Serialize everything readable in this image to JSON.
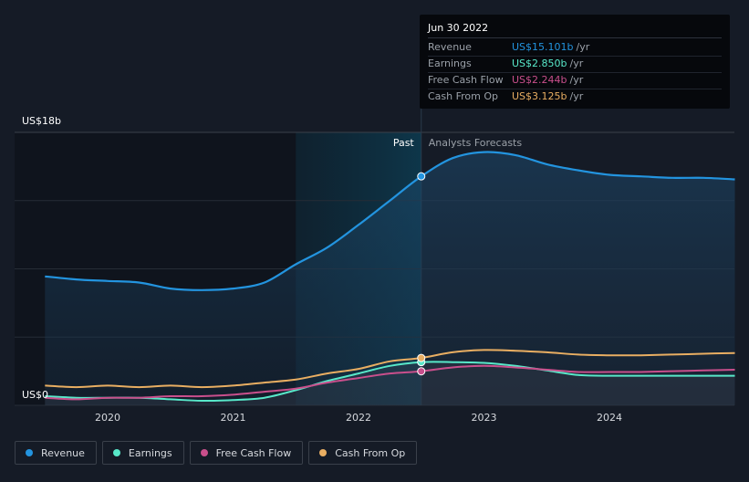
{
  "chart_data": {
    "type": "line",
    "currency_label_top": "US$18b",
    "currency_label_bottom": "US$0",
    "ylim": [
      0,
      18
    ],
    "x_ticks": [
      "2020",
      "2021",
      "2022",
      "2023",
      "2024"
    ],
    "past_label": "Past",
    "forecast_label": "Analysts Forecasts",
    "series": [
      {
        "name": "Revenue",
        "color": "#2394df",
        "x": [
          2019.5,
          2019.75,
          2020.0,
          2020.25,
          2020.5,
          2020.75,
          2021.0,
          2021.25,
          2021.5,
          2021.75,
          2022.0,
          2022.25,
          2022.5,
          2022.75,
          2023.0,
          2023.25,
          2023.5,
          2023.75,
          2024.0,
          2024.25,
          2024.5,
          2024.75,
          2025.0
        ],
        "values": [
          8.5,
          8.3,
          8.2,
          8.1,
          7.7,
          7.6,
          7.7,
          8.1,
          9.3,
          10.4,
          11.9,
          13.5,
          15.1,
          16.3,
          16.7,
          16.5,
          15.9,
          15.5,
          15.2,
          15.1,
          15.0,
          15.0,
          14.9
        ]
      },
      {
        "name": "Earnings",
        "color": "#58e8c9",
        "x": [
          2019.5,
          2019.75,
          2020.0,
          2020.25,
          2020.5,
          2020.75,
          2021.0,
          2021.25,
          2021.5,
          2021.75,
          2022.0,
          2022.25,
          2022.5,
          2022.75,
          2023.0,
          2023.25,
          2023.5,
          2023.75,
          2024.0,
          2024.25,
          2024.5,
          2024.75,
          2025.0
        ],
        "values": [
          0.6,
          0.5,
          0.5,
          0.5,
          0.4,
          0.3,
          0.35,
          0.5,
          1.0,
          1.6,
          2.1,
          2.6,
          2.85,
          2.85,
          2.8,
          2.6,
          2.3,
          2.0,
          1.95,
          1.95,
          1.95,
          1.95,
          1.95
        ]
      },
      {
        "name": "Free Cash Flow",
        "color": "#c94f8c",
        "x": [
          2019.5,
          2019.75,
          2020.0,
          2020.25,
          2020.5,
          2020.75,
          2021.0,
          2021.25,
          2021.5,
          2021.75,
          2022.0,
          2022.25,
          2022.5,
          2022.75,
          2023.0,
          2023.25,
          2023.5,
          2023.75,
          2024.0,
          2024.25,
          2024.5,
          2024.75,
          2025.0
        ],
        "values": [
          0.5,
          0.4,
          0.5,
          0.5,
          0.6,
          0.6,
          0.7,
          0.9,
          1.1,
          1.5,
          1.8,
          2.1,
          2.244,
          2.5,
          2.6,
          2.5,
          2.35,
          2.2,
          2.2,
          2.2,
          2.25,
          2.3,
          2.35
        ]
      },
      {
        "name": "Cash From Op",
        "color": "#e9ae62",
        "x": [
          2019.5,
          2019.75,
          2020.0,
          2020.25,
          2020.5,
          2020.75,
          2021.0,
          2021.25,
          2021.5,
          2021.75,
          2022.0,
          2022.25,
          2022.5,
          2022.75,
          2023.0,
          2023.25,
          2023.5,
          2023.75,
          2024.0,
          2024.25,
          2024.5,
          2024.75,
          2025.0
        ],
        "values": [
          1.3,
          1.2,
          1.3,
          1.2,
          1.3,
          1.2,
          1.3,
          1.5,
          1.7,
          2.1,
          2.4,
          2.9,
          3.125,
          3.5,
          3.65,
          3.6,
          3.5,
          3.35,
          3.3,
          3.3,
          3.35,
          3.4,
          3.45
        ]
      }
    ],
    "highlight_x": 2022.5,
    "forecast_start_x": 2022.5,
    "shaded_past_start_x": 2021.5
  },
  "tooltip": {
    "date": "Jun 30 2022",
    "rows": [
      {
        "label": "Revenue",
        "value": "US$15.101b",
        "unit": "/yr",
        "color": "#2394df"
      },
      {
        "label": "Earnings",
        "value": "US$2.850b",
        "unit": "/yr",
        "color": "#58e8c9"
      },
      {
        "label": "Free Cash Flow",
        "value": "US$2.244b",
        "unit": "/yr",
        "color": "#c94f8c"
      },
      {
        "label": "Cash From Op",
        "value": "US$3.125b",
        "unit": "/yr",
        "color": "#e9ae62"
      }
    ]
  },
  "legend": [
    {
      "label": "Revenue",
      "color": "#2394df"
    },
    {
      "label": "Earnings",
      "color": "#58e8c9"
    },
    {
      "label": "Free Cash Flow",
      "color": "#c94f8c"
    },
    {
      "label": "Cash From Op",
      "color": "#e9ae62"
    }
  ]
}
